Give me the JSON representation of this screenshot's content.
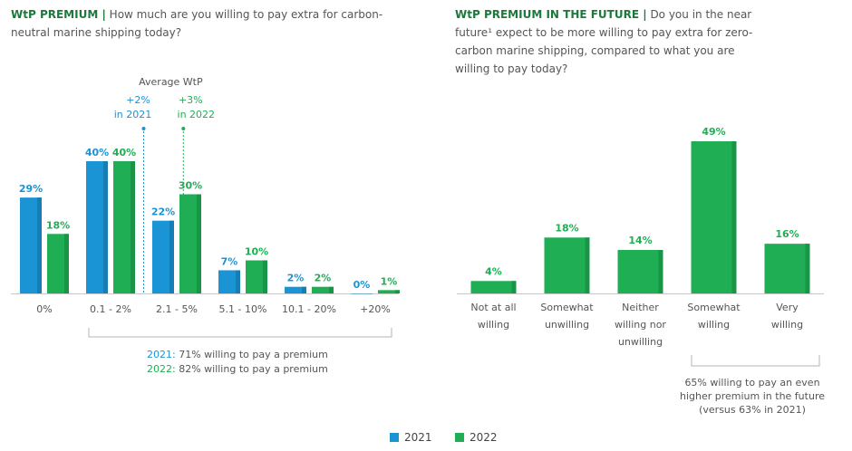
{
  "left_title": {
    "label": "WtP PREMIUM |",
    "question": "How much are you willing to pay extra for carbon-neutral marine shipping today?"
  },
  "right_title": {
    "label": "WtP PREMIUM IN THE FUTURE |",
    "question": "Do you in the near future¹ expect to be more willing to pay extra for zero-carbon marine shipping, compared to what you are willing to pay today?"
  },
  "colors": {
    "c2021": "#1a94d4",
    "c2022": "#1fae54",
    "title_green": "#1a7a3a"
  },
  "chart_data": [
    {
      "type": "bar",
      "title": "WtP PREMIUM",
      "categories": [
        "0%",
        "0.1 - 2%",
        "2.1 - 5%",
        "5.1 - 10%",
        "10.1 - 20%",
        "+20%"
      ],
      "series": [
        {
          "name": "2021",
          "values": [
            29,
            40,
            22,
            7,
            2,
            0
          ],
          "labels": [
            "29%",
            "40%",
            "22%",
            "7%",
            "2%",
            "0%"
          ]
        },
        {
          "name": "2022",
          "values": [
            18,
            40,
            30,
            10,
            2,
            1
          ],
          "labels": [
            "18%",
            "40%",
            "30%",
            "10%",
            "2%",
            "1%"
          ]
        }
      ],
      "ylim": [
        0,
        40
      ],
      "average_wtp": {
        "label": "Average WtP",
        "y2021": [
          "+2%",
          "in 2021"
        ],
        "y2022": [
          "+3%",
          "in 2022"
        ],
        "x2021": 1.5,
        "x2022": 2.1
      },
      "bracket_notes": [
        {
          "year": "2021:",
          "text": " 71% willing to pay a premium"
        },
        {
          "year": "2022:",
          "text": " 82% willing to pay a premium"
        }
      ]
    },
    {
      "type": "bar",
      "title": "WtP PREMIUM IN THE FUTURE",
      "categories": [
        [
          "Not at all",
          "willing"
        ],
        [
          "Somewhat",
          "unwilling"
        ],
        [
          "Neither",
          "willing nor",
          "unwilling"
        ],
        [
          "Somewhat",
          "willing"
        ],
        [
          "Very",
          "willing"
        ]
      ],
      "series": [
        {
          "name": "2022",
          "values": [
            4,
            18,
            14,
            49,
            16
          ],
          "labels": [
            "4%",
            "18%",
            "14%",
            "49%",
            "16%"
          ]
        }
      ],
      "ylim": [
        0,
        49
      ],
      "bracket_note": [
        "65% willing to pay an even",
        "higher premium in the future",
        "(versus 63% in 2021)"
      ]
    }
  ],
  "legend": [
    {
      "label": "2021",
      "color": "#1a94d4"
    },
    {
      "label": "2022",
      "color": "#1fae54"
    }
  ]
}
